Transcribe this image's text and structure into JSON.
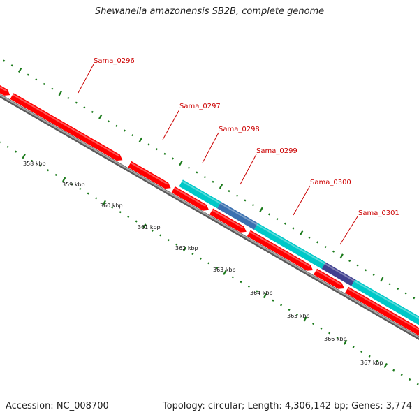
{
  "title": "Shewanella amazonensis SB2B, complete genome",
  "footer": {
    "accession": "Accession: NC_008700",
    "stats": "Topology: circular; Length: 4,306,142 bp; Genes: 3,774"
  },
  "colors": {
    "gene_red": "#ff0000",
    "feature_cyan": "#00c8c8",
    "overlap_blue": "#3a70b0",
    "overlap_purple": "#404090",
    "backbone_gray": "#7a7a7a",
    "tick_green": "#1a7a1a",
    "label_red": "#cc0000"
  },
  "gene_labels": [
    {
      "name": "Sama_0296",
      "text": "Sama_0296"
    },
    {
      "name": "Sama_0297",
      "text": "Sama_0297"
    },
    {
      "name": "Sama_0298",
      "text": "Sama_0298"
    },
    {
      "name": "Sama_0299",
      "text": "Sama_0299"
    },
    {
      "name": "Sama_0300",
      "text": "Sama_0300"
    },
    {
      "name": "Sama_0301",
      "text": "Sama_0301"
    }
  ],
  "ruler_labels": [
    "358 kbp",
    "359 kbp",
    "360 kbp",
    "361 kbp",
    "362 kbp",
    "363 kbp",
    "364 kbp",
    "365 kbp",
    "366 kbp",
    "367 kbp"
  ]
}
